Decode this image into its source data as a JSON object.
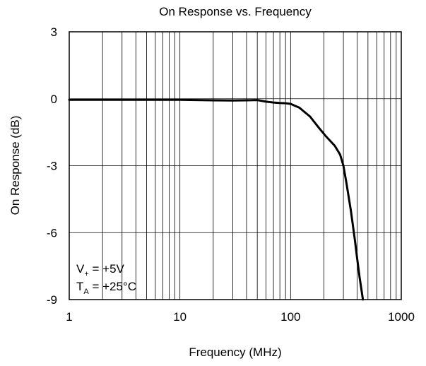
{
  "chart_data": {
    "type": "line",
    "title": "On Response vs. Frequency",
    "xlabel": "Frequency (MHz)",
    "ylabel": "On Response (dB)",
    "x_scale": "log",
    "xlim": [
      1,
      1000
    ],
    "ylim": [
      -9,
      3
    ],
    "x_ticks": [
      {
        "value": 1,
        "label": "1"
      },
      {
        "value": 10,
        "label": "10"
      },
      {
        "value": 100,
        "label": "100"
      },
      {
        "value": 1000,
        "label": "1000"
      }
    ],
    "y_ticks": [
      {
        "value": 3,
        "label": "3"
      },
      {
        "value": 0,
        "label": "0"
      },
      {
        "value": -3,
        "label": "-3"
      },
      {
        "value": -6,
        "label": "-6"
      },
      {
        "value": -9,
        "label": "-9"
      }
    ],
    "grid": true,
    "annotations": {
      "supply": {
        "main": "V",
        "sub": "+",
        "rest": " = +5V"
      },
      "temperature": {
        "main": "T",
        "sub": "A",
        "rest": " = +25°C"
      }
    },
    "series": [
      {
        "x": [
          1,
          2,
          5,
          10,
          20,
          30,
          40,
          50,
          60,
          70,
          80,
          90,
          100,
          120,
          150,
          180,
          210,
          250,
          280,
          300,
          320,
          350,
          380,
          400,
          420,
          450
        ],
        "y": [
          -0.05,
          -0.05,
          -0.05,
          -0.05,
          -0.07,
          -0.08,
          -0.07,
          -0.06,
          -0.13,
          -0.17,
          -0.19,
          -0.2,
          -0.23,
          -0.4,
          -0.8,
          -1.3,
          -1.7,
          -2.1,
          -2.5,
          -3.0,
          -3.8,
          -5.0,
          -6.3,
          -7.2,
          -8.0,
          -9.0
        ],
        "color": "#000000"
      }
    ]
  }
}
